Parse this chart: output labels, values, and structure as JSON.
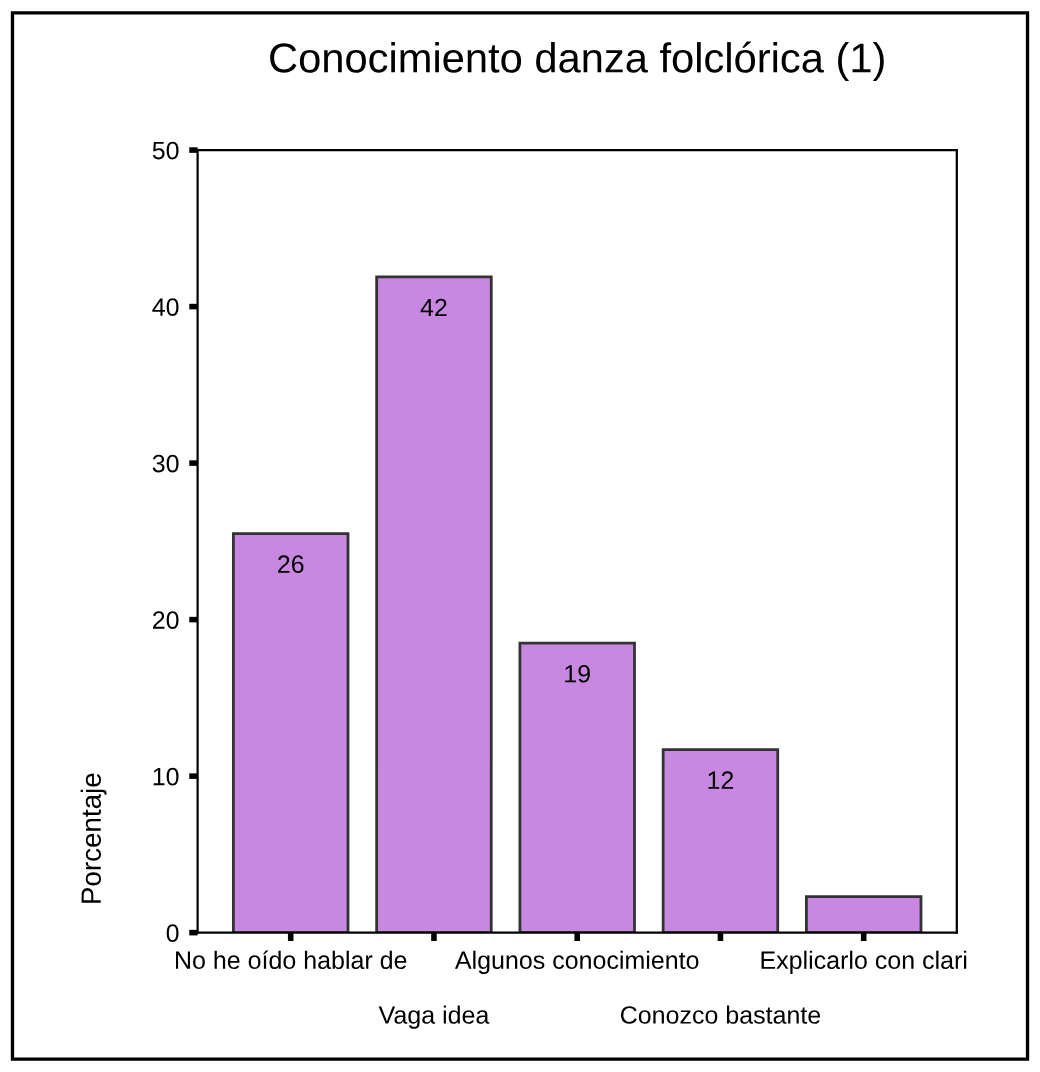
{
  "chart_data": {
    "type": "bar",
    "title": "Conocimiento danza folclórica (1)",
    "ylabel": "Porcentaje",
    "categories": [
      "No he oído hablar de",
      "Vaga idea",
      "Algunos conocimiento",
      "Conozco bastante",
      "Explicarlo con clari"
    ],
    "values": [
      25.5,
      41.9,
      18.5,
      11.7,
      2.3
    ],
    "value_labels": [
      "26",
      "42",
      "19",
      "12",
      null
    ],
    "color": "#c887e0",
    "ylim": [
      0,
      50
    ],
    "yticks": [
      0,
      10,
      20,
      30,
      40,
      50
    ],
    "grid": false,
    "legend": false
  }
}
